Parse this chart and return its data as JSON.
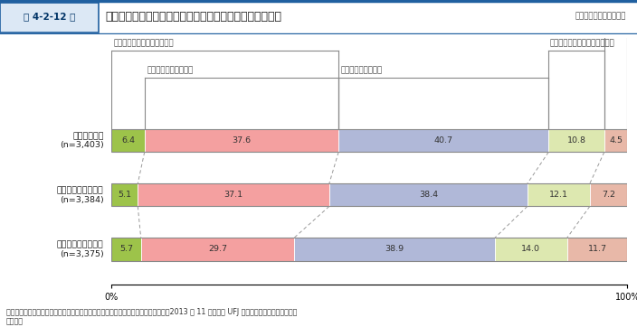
{
  "title_box_label": "第 4-2-12 図",
  "title_main": "中小企業・小規模事業者施策の情報を得られるタイミング",
  "categories": [
    "国の施策情報\n(n=3,403)",
    "都道府県の施策情報\n(n=3,384)",
    "市区町村の施策情報\n(n=3,375)"
  ],
  "segments": [
    {
      "label": "とてもタイムリーに得られる",
      "values": [
        6.4,
        5.1,
        5.7
      ],
      "color": "#9dc34a"
    },
    {
      "label": "タイムリーに得られる",
      "values": [
        37.6,
        37.1,
        29.7
      ],
      "color": "#f4a0a0"
    },
    {
      "label": "どちらとも言えない",
      "values": [
        40.7,
        38.4,
        38.9
      ],
      "color": "#b0b8d8"
    },
    {
      "label": "あまりタイムリーに得られない",
      "values": [
        10.8,
        12.1,
        14.0
      ],
      "color": "#dde8b0"
    },
    {
      "label": "タイムリーに得られない",
      "values": [
        4.5,
        7.2,
        11.7
      ],
      "color": "#e8b8a8"
    }
  ],
  "footnote": "資料：中小企業庁委託「中小企業支援機関の連携状況と施策認知度に関する調査」（2013 年 11 月、三菱 UFJ リサーチ＆コンサルティング\n（株））",
  "header_bg": "#dce8f5",
  "header_border": "#2060a0",
  "title_color": "#003366",
  "bar_text_color": "#333333",
  "border_color": "#888888",
  "dash_color": "#999999"
}
